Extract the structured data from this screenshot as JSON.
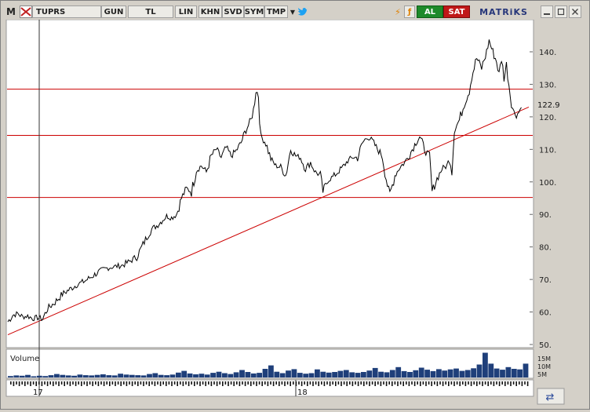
{
  "toolbar": {
    "logo": "M",
    "symbol": "TUPRS",
    "period": "GUN",
    "currency": "TL",
    "scale": "LIN",
    "btn_khn": "KHN",
    "btn_svd": "SVD",
    "btn_sym": "SYM",
    "btn_tmp": "TMP",
    "buy": "AL",
    "sell": "SAT",
    "brand": "MATRiKS",
    "icons": [
      "flag-icon",
      "dropdown-icon",
      "twitter-icon",
      "bolt-icon",
      "f-icon",
      "minimize-icon",
      "maximize-icon",
      "close-icon"
    ]
  },
  "chart_data": {
    "type": "line",
    "symbol": "TUPRS",
    "last_price_label": "122.9",
    "last_price": 122.9,
    "ylim": [
      50,
      150
    ],
    "yticks": [
      50,
      60,
      70,
      80,
      90,
      100,
      110,
      120,
      130,
      140
    ],
    "ytick_labels": [
      "50.",
      "60.",
      "70.",
      "80.",
      "90.",
      "100.",
      "110.",
      "120.",
      "130.",
      "140."
    ],
    "xtick_labels": [
      "17",
      "18"
    ],
    "horizontal_levels": [
      128.5,
      114.3,
      95.2
    ],
    "trendline": {
      "start": [
        0,
        53
      ],
      "end": [
        420,
        123
      ]
    },
    "grid": false,
    "price_color": "#000000",
    "level_color": "#cc0000",
    "volume_panel": {
      "label": "Volume",
      "scale_labels": [
        "5M",
        "10M",
        "15M"
      ],
      "color": "#1f3f7a"
    },
    "x_index_range": [
      0,
      420
    ],
    "points": [
      [
        0,
        57
      ],
      [
        4,
        59
      ],
      [
        8,
        59.5
      ],
      [
        12,
        58.5
      ],
      [
        16,
        58.8
      ],
      [
        20,
        58
      ],
      [
        24,
        58.3
      ],
      [
        28,
        57.8
      ],
      [
        32,
        61
      ],
      [
        38,
        63
      ],
      [
        44,
        65.5
      ],
      [
        50,
        67
      ],
      [
        56,
        68.5
      ],
      [
        62,
        69.5
      ],
      [
        68,
        71
      ],
      [
        74,
        72.5
      ],
      [
        80,
        73.5
      ],
      [
        86,
        74
      ],
      [
        92,
        74.3
      ],
      [
        98,
        75.5
      ],
      [
        104,
        77
      ],
      [
        108,
        80
      ],
      [
        112,
        83
      ],
      [
        116,
        85.5
      ],
      [
        120,
        86.5
      ],
      [
        124,
        88
      ],
      [
        128,
        89.5
      ],
      [
        132,
        89
      ],
      [
        136,
        90
      ],
      [
        140,
        95
      ],
      [
        144,
        98
      ],
      [
        148,
        97
      ],
      [
        152,
        103.5
      ],
      [
        156,
        105
      ],
      [
        160,
        103
      ],
      [
        164,
        108
      ],
      [
        168,
        110
      ],
      [
        172,
        107.5
      ],
      [
        176,
        110.5
      ],
      [
        180,
        108
      ],
      [
        184,
        109.5
      ],
      [
        188,
        112
      ],
      [
        192,
        116
      ],
      [
        196,
        119
      ],
      [
        198,
        122
      ],
      [
        200,
        128
      ],
      [
        202,
        127
      ],
      [
        204,
        114
      ],
      [
        208,
        112
      ],
      [
        212,
        107
      ],
      [
        216,
        105
      ],
      [
        220,
        104.5
      ],
      [
        224,
        102
      ],
      [
        228,
        110
      ],
      [
        232,
        108
      ],
      [
        236,
        107.5
      ],
      [
        240,
        104
      ],
      [
        244,
        106
      ],
      [
        248,
        103
      ],
      [
        252,
        102
      ],
      [
        254,
        97
      ],
      [
        258,
        100.5
      ],
      [
        262,
        101.5
      ],
      [
        266,
        103
      ],
      [
        270,
        104.5
      ],
      [
        274,
        106.5
      ],
      [
        278,
        107.5
      ],
      [
        282,
        107.5
      ],
      [
        286,
        112
      ],
      [
        290,
        114
      ],
      [
        294,
        112.5
      ],
      [
        298,
        110
      ],
      [
        302,
        108
      ],
      [
        306,
        99
      ],
      [
        308,
        96
      ],
      [
        312,
        102
      ],
      [
        316,
        104.5
      ],
      [
        320,
        106
      ],
      [
        324,
        108.5
      ],
      [
        328,
        111.5
      ],
      [
        332,
        114
      ],
      [
        336,
        110
      ],
      [
        340,
        107.5
      ],
      [
        342,
        97
      ],
      [
        346,
        101
      ],
      [
        350,
        104
      ],
      [
        354,
        105
      ],
      [
        356,
        107
      ],
      [
        358,
        104
      ],
      [
        360,
        116
      ],
      [
        364,
        119
      ],
      [
        368,
        124
      ],
      [
        372,
        128
      ],
      [
        374,
        132.5
      ],
      [
        378,
        138
      ],
      [
        382,
        135
      ],
      [
        386,
        140
      ],
      [
        388,
        143.5
      ],
      [
        390,
        141
      ],
      [
        394,
        137
      ],
      [
        396,
        133
      ],
      [
        398,
        138
      ],
      [
        400,
        132
      ],
      [
        402,
        136
      ],
      [
        404,
        130
      ],
      [
        406,
        124
      ],
      [
        408,
        121.5
      ],
      [
        410,
        120.5
      ],
      [
        412,
        121.5
      ],
      [
        414,
        122.9
      ]
    ],
    "volume": [
      0.5,
      0.7,
      0.6,
      0.9,
      0.4,
      0.6,
      0.5,
      0.8,
      1.2,
      0.9,
      0.7,
      0.6,
      1.0,
      0.8,
      0.7,
      0.9,
      1.1,
      0.8,
      0.7,
      1.3,
      1.0,
      0.9,
      0.8,
      0.7,
      1.2,
      1.5,
      0.9,
      0.8,
      1.0,
      1.7,
      2.3,
      1.4,
      1.1,
      1.3,
      1.0,
      1.6,
      2.0,
      1.5,
      1.2,
      1.8,
      2.6,
      1.9,
      1.4,
      1.6,
      3.0,
      4.2,
      2.0,
      1.5,
      2.4,
      2.9,
      1.6,
      1.3,
      1.5,
      2.8,
      2.0,
      1.7,
      1.9,
      2.3,
      2.6,
      1.8,
      1.6,
      1.9,
      2.4,
      3.3,
      2.0,
      1.8,
      2.6,
      3.6,
      2.2,
      1.9,
      2.5,
      3.4,
      2.7,
      2.2,
      2.9,
      2.4,
      2.8,
      3.1,
      2.3,
      2.6,
      3.2,
      4.5,
      8.6,
      4.8,
      3.1,
      2.7,
      3.6,
      3.0,
      2.8,
      4.8
    ]
  }
}
